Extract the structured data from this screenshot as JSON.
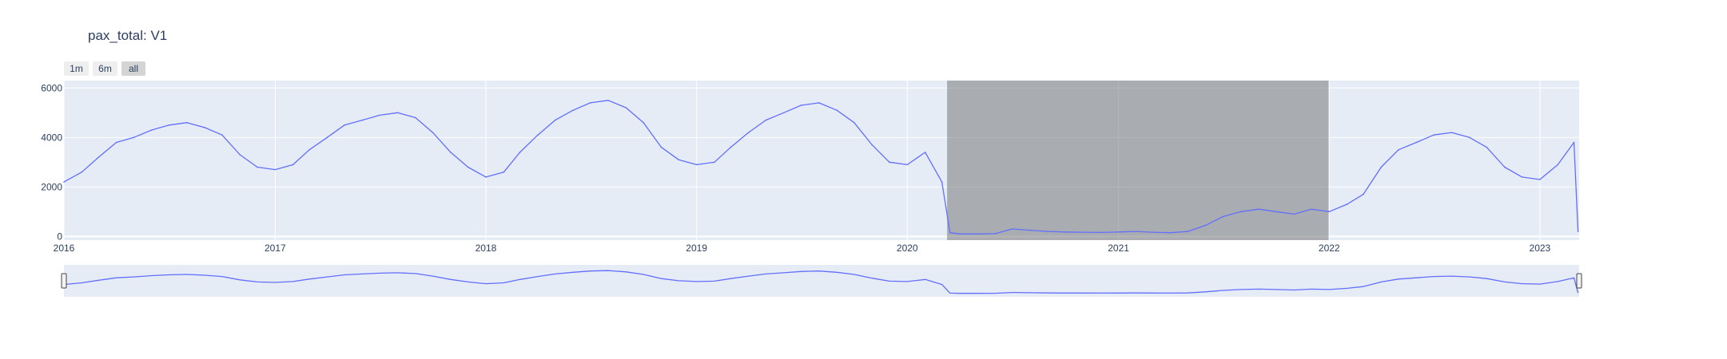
{
  "chart_data": {
    "type": "line",
    "title": "pax_total: V1",
    "xlabel": "",
    "ylabel": "",
    "x_range": [
      "2016-01-01",
      "2023-03-10"
    ],
    "y_range": [
      -150,
      6300
    ],
    "y_ticks": [
      0,
      2000,
      4000,
      6000
    ],
    "x_ticks": [
      "2016",
      "2017",
      "2018",
      "2019",
      "2020",
      "2021",
      "2022",
      "2023"
    ],
    "grid": true,
    "range_selector_buttons": [
      "1m",
      "6m",
      "all"
    ],
    "active_button": "all",
    "highlighted_range": [
      "2020-03-10",
      "2021-12-31"
    ],
    "series": [
      {
        "color": "#636efa",
        "x": [
          "2016-01-01",
          "2016-02-01",
          "2016-03-01",
          "2016-04-01",
          "2016-05-01",
          "2016-06-01",
          "2016-07-01",
          "2016-08-01",
          "2016-09-01",
          "2016-10-01",
          "2016-11-01",
          "2016-12-01",
          "2017-01-01",
          "2017-02-01",
          "2017-03-01",
          "2017-04-01",
          "2017-05-01",
          "2017-06-01",
          "2017-07-01",
          "2017-08-01",
          "2017-09-01",
          "2017-10-01",
          "2017-11-01",
          "2017-12-01",
          "2018-01-01",
          "2018-02-01",
          "2018-03-01",
          "2018-04-01",
          "2018-05-01",
          "2018-06-01",
          "2018-07-01",
          "2018-08-01",
          "2018-09-01",
          "2018-10-01",
          "2018-11-01",
          "2018-12-01",
          "2019-01-01",
          "2019-02-01",
          "2019-03-01",
          "2019-04-01",
          "2019-05-01",
          "2019-06-01",
          "2019-07-01",
          "2019-08-01",
          "2019-09-01",
          "2019-10-01",
          "2019-11-01",
          "2019-12-01",
          "2020-01-01",
          "2020-02-01",
          "2020-03-01",
          "2020-03-15",
          "2020-04-01",
          "2020-05-01",
          "2020-06-01",
          "2020-07-01",
          "2020-08-01",
          "2020-09-01",
          "2020-10-01",
          "2020-11-01",
          "2020-12-01",
          "2021-01-01",
          "2021-02-01",
          "2021-03-01",
          "2021-04-01",
          "2021-05-01",
          "2021-06-01",
          "2021-07-01",
          "2021-08-01",
          "2021-09-01",
          "2021-10-01",
          "2021-11-01",
          "2021-12-01",
          "2022-01-01",
          "2022-02-01",
          "2022-03-01",
          "2022-04-01",
          "2022-05-01",
          "2022-06-01",
          "2022-07-01",
          "2022-08-01",
          "2022-09-01",
          "2022-10-01",
          "2022-11-01",
          "2022-12-01",
          "2023-01-01",
          "2023-02-01",
          "2023-03-01",
          "2023-03-08"
        ],
        "y": [
          2200,
          2600,
          3200,
          3800,
          4000,
          4300,
          4500,
          4600,
          4400,
          4100,
          3300,
          2800,
          2700,
          2900,
          3500,
          4000,
          4500,
          4700,
          4900,
          5000,
          4800,
          4200,
          3400,
          2800,
          2400,
          2600,
          3400,
          4100,
          4700,
          5100,
          5400,
          5500,
          5200,
          4600,
          3600,
          3100,
          2900,
          3000,
          3600,
          4200,
          4700,
          5000,
          5300,
          5400,
          5100,
          4600,
          3700,
          3000,
          2900,
          3400,
          2200,
          150,
          100,
          100,
          110,
          300,
          250,
          200,
          180,
          170,
          160,
          180,
          200,
          170,
          150,
          200,
          450,
          800,
          1000,
          1100,
          1000,
          900,
          1100,
          1000,
          1300,
          1700,
          2800,
          3500,
          3800,
          4100,
          4200,
          4000,
          3600,
          2800,
          2400,
          2300,
          2900,
          3800,
          200
        ]
      }
    ]
  }
}
